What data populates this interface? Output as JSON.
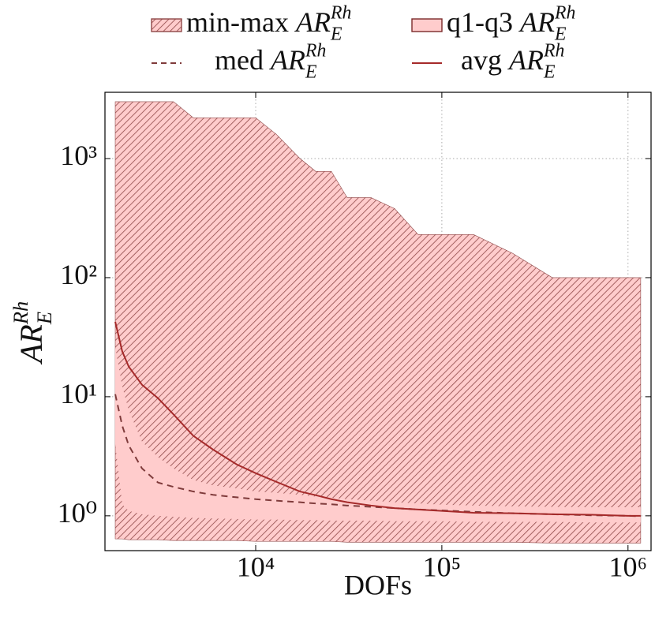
{
  "chart_data": {
    "type": "band-line",
    "xlabel": "DOFs",
    "quantity": {
      "symbol": "AR",
      "sub": "E",
      "sup": "Rh"
    },
    "x_log": true,
    "y_log": true,
    "grid": true,
    "xlim": [
      1550,
      1330000
    ],
    "ylim": [
      0.51,
      3600
    ],
    "xticks": [
      {
        "value": 10000,
        "label": "10⁴"
      },
      {
        "value": 100000,
        "label": "10⁵"
      },
      {
        "value": 1000000,
        "label": "10⁶"
      }
    ],
    "yticks": [
      {
        "value": 1,
        "label": "10⁰"
      },
      {
        "value": 10,
        "label": "10¹"
      },
      {
        "value": 100,
        "label": "10²"
      },
      {
        "value": 1000,
        "label": "10³"
      }
    ],
    "x": [
      1760,
      1920,
      2080,
      2450,
      2990,
      3620,
      4620,
      5900,
      7910,
      10000,
      12900,
      17300,
      21000,
      25500,
      31000,
      41600,
      55700,
      74600,
      100000,
      148000,
      240000,
      392000,
      638000,
      1000000,
      1170000
    ],
    "series": [
      {
        "name": "min-max",
        "kind": "hatched-band",
        "color": "#ffcccc",
        "hatch_color": "#8f4848",
        "lower": [
          0.64,
          0.64,
          0.63,
          0.63,
          0.63,
          0.62,
          0.62,
          0.62,
          0.62,
          0.61,
          0.61,
          0.61,
          0.61,
          0.61,
          0.6,
          0.6,
          0.6,
          0.6,
          0.6,
          0.6,
          0.6,
          0.59,
          0.59,
          0.59,
          0.59
        ],
        "upper": [
          3000,
          3000,
          3000,
          3000,
          3000,
          3000,
          2200,
          2200,
          2200,
          2200,
          1600,
          1000,
          780,
          780,
          470,
          470,
          380,
          230,
          230,
          230,
          160,
          100,
          100,
          100,
          100
        ]
      },
      {
        "name": "q1-q3",
        "kind": "band",
        "color": "#ffcccc",
        "lower": [
          4.0,
          1.25,
          1.1,
          1.03,
          1.0,
          0.98,
          0.96,
          0.95,
          0.94,
          0.93,
          0.93,
          0.92,
          0.92,
          0.91,
          0.91,
          0.91,
          0.9,
          0.9,
          0.9,
          0.89,
          0.89,
          0.89,
          0.88,
          0.88,
          0.88
        ],
        "upper": [
          26,
          12.2,
          7.7,
          4.2,
          3.1,
          2.5,
          2.0,
          1.8,
          1.7,
          1.6,
          1.56,
          1.5,
          1.45,
          1.42,
          1.38,
          1.34,
          1.3,
          1.27,
          1.24,
          1.22,
          1.2,
          1.19,
          1.18,
          1.18,
          1.18
        ]
      },
      {
        "name": "med",
        "kind": "dashed-line",
        "color": "#7f3b3b",
        "values": [
          10.5,
          5.7,
          3.9,
          2.5,
          1.9,
          1.75,
          1.6,
          1.5,
          1.43,
          1.38,
          1.34,
          1.3,
          1.27,
          1.25,
          1.22,
          1.19,
          1.16,
          1.13,
          1.11,
          1.08,
          1.05,
          1.03,
          1.01,
          1.0,
          0.99
        ]
      },
      {
        "name": "avg",
        "kind": "line",
        "color": "#a52a2a",
        "values": [
          42.6,
          24,
          17.9,
          12.6,
          9.7,
          7.1,
          4.7,
          3.6,
          2.7,
          2.28,
          1.93,
          1.6,
          1.49,
          1.38,
          1.3,
          1.22,
          1.16,
          1.13,
          1.1,
          1.06,
          1.05,
          1.03,
          1.02,
          1.0,
          1.0
        ]
      }
    ]
  }
}
